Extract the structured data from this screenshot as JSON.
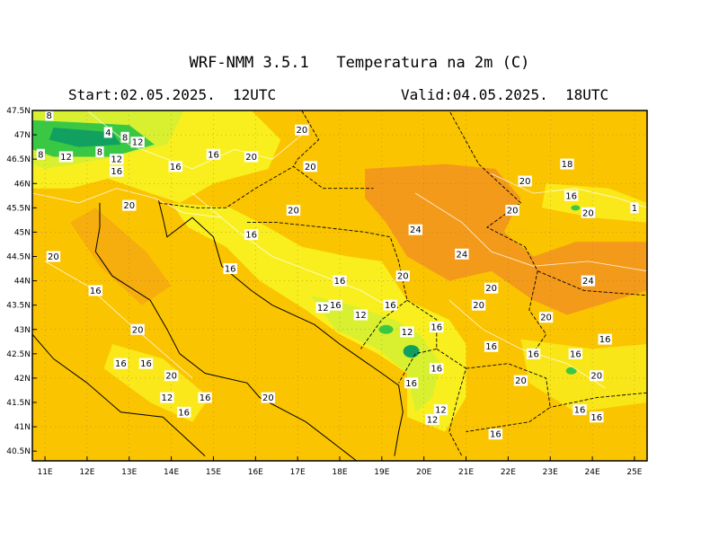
{
  "header": {
    "title": "WRF-NMM 3.5.1   Temperatura na 2m (C)",
    "start": "Start:02.05.2025.  12UTC",
    "valid": "Valid:04.05.2025.  18UTC"
  },
  "map": {
    "lon_range": [
      10.7,
      25.3
    ],
    "lat_range": [
      40.3,
      47.5
    ],
    "lat_ticks": [
      "47.5N",
      "47N",
      "46.5N",
      "46N",
      "45.5N",
      "45N",
      "44.5N",
      "44N",
      "43.5N",
      "43N",
      "42.5N",
      "42N",
      "41.5N",
      "41N",
      "40.5N"
    ],
    "lon_ticks": [
      "11E",
      "12E",
      "13E",
      "14E",
      "15E",
      "16E",
      "17E",
      "18E",
      "19E",
      "20E",
      "21E",
      "22E",
      "23E",
      "24E",
      "25E"
    ],
    "colors": {
      "t24": "#f39a1a",
      "t20": "#fbc400",
      "t16": "#f9ef1e",
      "t12": "#d8f030",
      "t8": "#39c843",
      "t4": "#10a060"
    },
    "contour_labels": [
      {
        "text": "8",
        "lon": 11.1,
        "lat": 47.4
      },
      {
        "text": "4",
        "lon": 12.5,
        "lat": 47.05
      },
      {
        "text": "8",
        "lon": 12.9,
        "lat": 46.95
      },
      {
        "text": "12",
        "lon": 13.2,
        "lat": 46.85
      },
      {
        "text": "8",
        "lon": 10.9,
        "lat": 46.6
      },
      {
        "text": "12",
        "lon": 11.5,
        "lat": 46.55
      },
      {
        "text": "8",
        "lon": 12.3,
        "lat": 46.65
      },
      {
        "text": "12",
        "lon": 12.7,
        "lat": 46.5
      },
      {
        "text": "16",
        "lon": 12.7,
        "lat": 46.25
      },
      {
        "text": "16",
        "lon": 14.1,
        "lat": 46.35
      },
      {
        "text": "16",
        "lon": 15.0,
        "lat": 46.6
      },
      {
        "text": "20",
        "lon": 15.9,
        "lat": 46.55
      },
      {
        "text": "20",
        "lon": 17.1,
        "lat": 47.1
      },
      {
        "text": "20",
        "lon": 17.3,
        "lat": 46.35
      },
      {
        "text": "18",
        "lon": 23.4,
        "lat": 46.4
      },
      {
        "text": "20",
        "lon": 22.4,
        "lat": 46.05
      },
      {
        "text": "16",
        "lon": 23.5,
        "lat": 45.75
      },
      {
        "text": "20",
        "lon": 22.1,
        "lat": 45.45
      },
      {
        "text": "20",
        "lon": 23.9,
        "lat": 45.4
      },
      {
        "text": "1",
        "lon": 25.0,
        "lat": 45.5
      },
      {
        "text": "20",
        "lon": 13.0,
        "lat": 45.55
      },
      {
        "text": "20",
        "lon": 11.2,
        "lat": 44.5
      },
      {
        "text": "20",
        "lon": 16.9,
        "lat": 45.45
      },
      {
        "text": "16",
        "lon": 15.9,
        "lat": 44.95
      },
      {
        "text": "24",
        "lon": 19.8,
        "lat": 45.05
      },
      {
        "text": "24",
        "lon": 20.9,
        "lat": 44.55
      },
      {
        "text": "16",
        "lon": 15.4,
        "lat": 44.25
      },
      {
        "text": "16",
        "lon": 12.2,
        "lat": 43.8
      },
      {
        "text": "16",
        "lon": 18.0,
        "lat": 44.0
      },
      {
        "text": "20",
        "lon": 19.5,
        "lat": 44.1
      },
      {
        "text": "20",
        "lon": 21.6,
        "lat": 43.85
      },
      {
        "text": "24",
        "lon": 23.9,
        "lat": 44.0
      },
      {
        "text": "20",
        "lon": 21.3,
        "lat": 43.5
      },
      {
        "text": "12",
        "lon": 17.6,
        "lat": 43.45
      },
      {
        "text": "16",
        "lon": 17.9,
        "lat": 43.5
      },
      {
        "text": "12",
        "lon": 18.5,
        "lat": 43.3
      },
      {
        "text": "16",
        "lon": 19.2,
        "lat": 43.5
      },
      {
        "text": "20",
        "lon": 22.9,
        "lat": 43.25
      },
      {
        "text": "20",
        "lon": 13.2,
        "lat": 43.0
      },
      {
        "text": "12",
        "lon": 19.6,
        "lat": 42.95
      },
      {
        "text": "16",
        "lon": 20.3,
        "lat": 43.05
      },
      {
        "text": "16",
        "lon": 24.3,
        "lat": 42.8
      },
      {
        "text": "16",
        "lon": 21.6,
        "lat": 42.65
      },
      {
        "text": "16",
        "lon": 22.6,
        "lat": 42.5
      },
      {
        "text": "16",
        "lon": 23.6,
        "lat": 42.5
      },
      {
        "text": "16",
        "lon": 12.8,
        "lat": 42.3
      },
      {
        "text": "16",
        "lon": 13.4,
        "lat": 42.3
      },
      {
        "text": "20",
        "lon": 14.0,
        "lat": 42.05
      },
      {
        "text": "16",
        "lon": 20.3,
        "lat": 42.2
      },
      {
        "text": "20",
        "lon": 24.1,
        "lat": 42.05
      },
      {
        "text": "20",
        "lon": 22.3,
        "lat": 41.95
      },
      {
        "text": "16",
        "lon": 19.7,
        "lat": 41.9
      },
      {
        "text": "12",
        "lon": 13.9,
        "lat": 41.6
      },
      {
        "text": "16",
        "lon": 14.8,
        "lat": 41.6
      },
      {
        "text": "20",
        "lon": 16.3,
        "lat": 41.6
      },
      {
        "text": "16",
        "lon": 14.3,
        "lat": 41.3
      },
      {
        "text": "12",
        "lon": 20.4,
        "lat": 41.35
      },
      {
        "text": "16",
        "lon": 23.7,
        "lat": 41.35
      },
      {
        "text": "16",
        "lon": 24.1,
        "lat": 41.2
      },
      {
        "text": "12",
        "lon": 20.2,
        "lat": 41.15
      },
      {
        "text": "16",
        "lon": 21.7,
        "lat": 40.85
      }
    ]
  }
}
